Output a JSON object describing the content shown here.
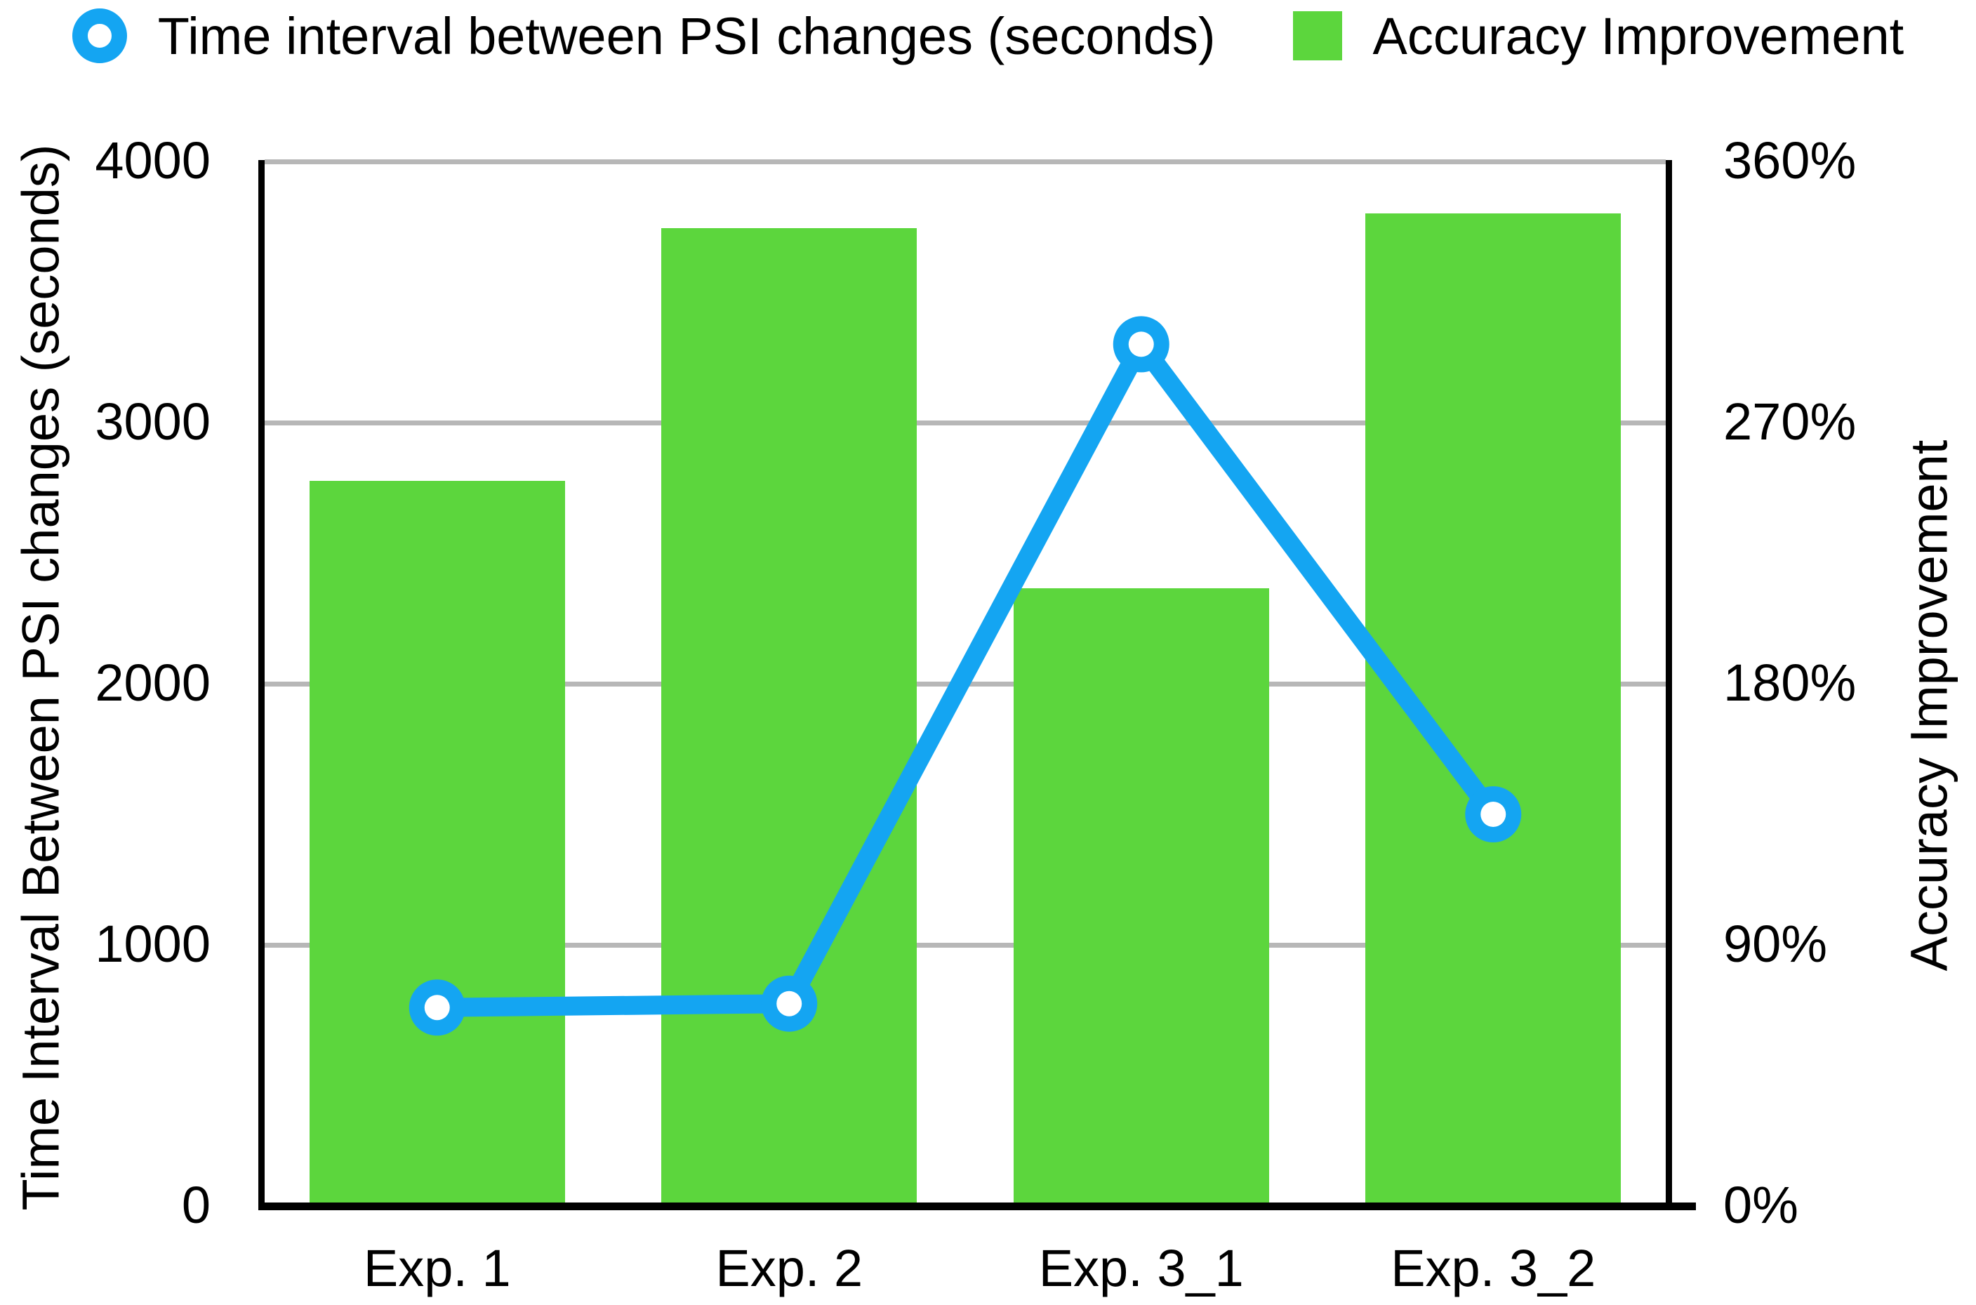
{
  "colors": {
    "bar": "#5CD63D",
    "line": "#14A5F2",
    "grid": "#B7B7B7",
    "axis": "#000000"
  },
  "legend": {
    "items": [
      {
        "label": "Time interval between PSI changes (seconds)",
        "marker": "donut-marker-icon"
      },
      {
        "label": "Accuracy Improvement",
        "marker": "square-swatch-icon"
      }
    ]
  },
  "left_axis": {
    "title": "Time Interval Between PSI changes (seconds)",
    "ticks": [
      "4000",
      "3000",
      "2000",
      "1000",
      "0"
    ]
  },
  "right_axis": {
    "title": "Accuracy Improvement",
    "ticks": [
      "360%",
      "270%",
      "180%",
      "90%",
      "0%"
    ]
  },
  "x_axis": {
    "categories": [
      "Exp. 1",
      "Exp. 2",
      "Exp. 3_1",
      "Exp. 3_2"
    ]
  },
  "chart_data": {
    "type": "combo",
    "categories": [
      "Exp. 1",
      "Exp. 2",
      "Exp. 3_1",
      "Exp. 3_2"
    ],
    "series": [
      {
        "name": "Time interval between PSI changes (seconds)",
        "type": "line",
        "axis": "left",
        "color": "#14A5F2",
        "values": [
          760,
          775,
          3300,
          1500
        ]
      },
      {
        "name": "Accuracy Improvement",
        "type": "bar",
        "axis": "right",
        "color": "#5CD63D",
        "unit": "%",
        "values": [
          250,
          337,
          213,
          342
        ]
      }
    ],
    "left_ylim": [
      0,
      4000
    ],
    "right_ylim": [
      0,
      360
    ],
    "grid": true,
    "gridline_step_left": 1000,
    "gridline_step_right": 90,
    "legend_position": "top"
  }
}
